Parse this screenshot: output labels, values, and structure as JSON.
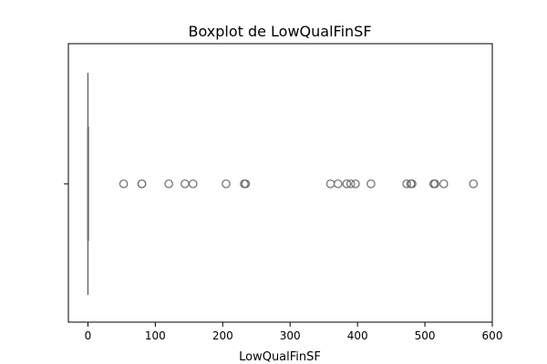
{
  "chart_data": {
    "type": "boxplot",
    "title": "Boxplot de LowQualFinSF",
    "xlabel": "LowQualFinSF",
    "ylabel": "",
    "xlim": [
      -29,
      600
    ],
    "xticks": [
      0,
      100,
      200,
      300,
      400,
      500,
      600
    ],
    "orientation": "horizontal",
    "grid": false,
    "box": {
      "whisker_low": 0,
      "q1": 0,
      "median": 0,
      "q3": 0,
      "whisker_high": 0
    },
    "outliers": [
      53,
      80,
      80,
      120,
      144,
      156,
      205,
      232,
      234,
      360,
      371,
      384,
      390,
      397,
      420,
      473,
      479,
      481,
      513,
      515,
      528,
      572
    ],
    "colors": {
      "box_fill": "#cfe0ef",
      "line": "#6b6b6b"
    }
  }
}
